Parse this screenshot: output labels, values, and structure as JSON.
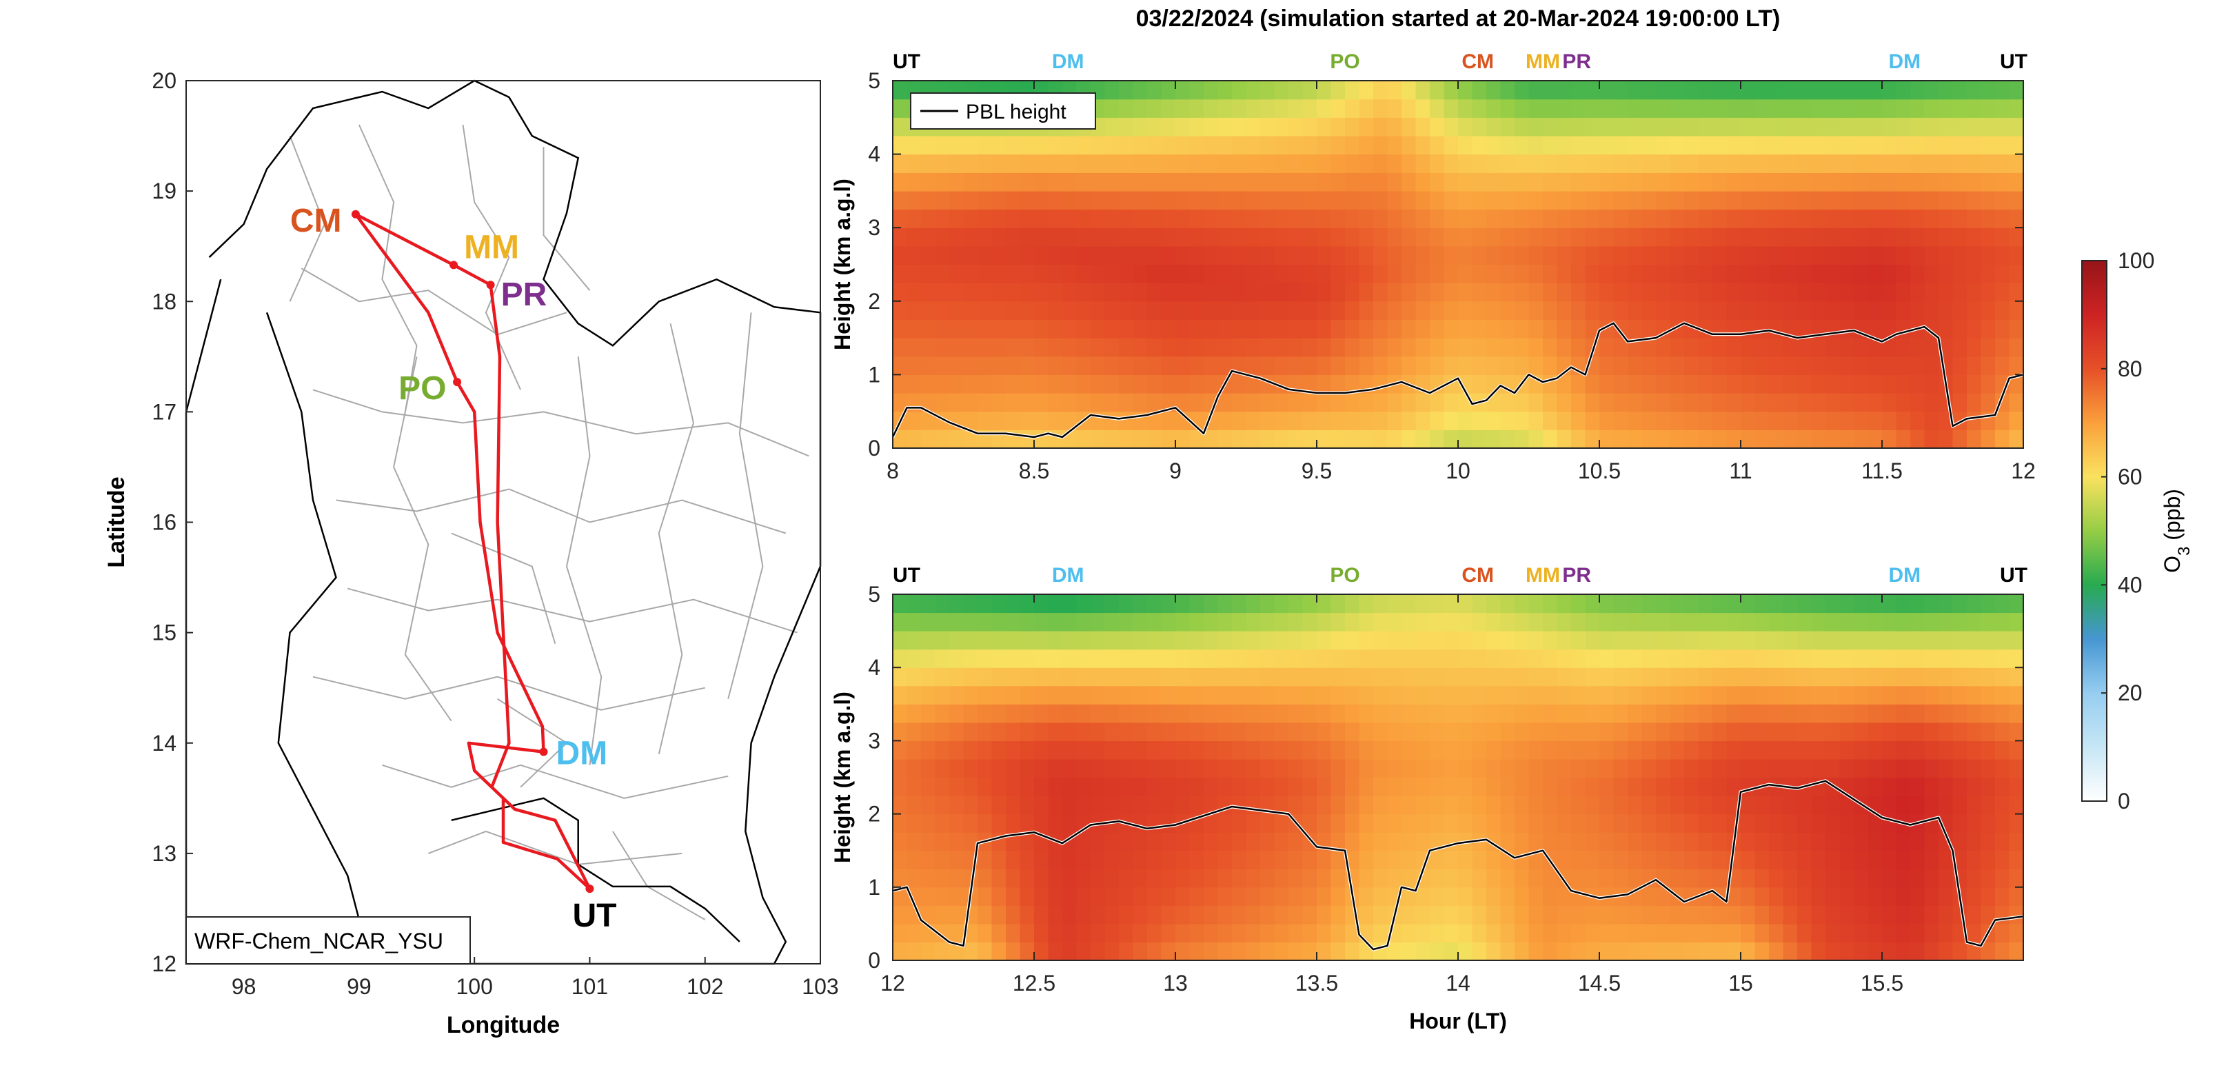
{
  "figure": {
    "title": "03/22/2024 (simulation started at 20-Mar-2024 19:00:00 LT)"
  },
  "colors": {
    "route": "#e8191f",
    "CM": "#d9531e",
    "MM": "#edb121",
    "PR": "#7e2f8e",
    "PO": "#77ac30",
    "DM": "#4dbeee",
    "UT": "#000000",
    "pbl": "#000000"
  },
  "map": {
    "xlabel": "Longitude",
    "ylabel": "Latitude",
    "xlim": [
      97.5,
      103
    ],
    "ylim": [
      12,
      20
    ],
    "xticks": [
      98,
      99,
      100,
      101,
      102,
      103
    ],
    "yticks": [
      12,
      13,
      14,
      15,
      16,
      17,
      18,
      19,
      20
    ],
    "model_label": "WRF-Chem_NCAR_YSU",
    "sites": [
      {
        "code": "CM",
        "lon": 98.97,
        "lat": 18.79
      },
      {
        "code": "MM",
        "lon": 99.82,
        "lat": 18.33
      },
      {
        "code": "PR",
        "lon": 100.14,
        "lat": 18.15
      },
      {
        "code": "PO",
        "lon": 99.85,
        "lat": 17.27
      },
      {
        "code": "DM",
        "lon": 100.6,
        "lat": 13.92
      },
      {
        "code": "UT",
        "lon": 101.0,
        "lat": 12.68
      }
    ],
    "route": [
      [
        101.0,
        12.68
      ],
      [
        100.72,
        12.95
      ],
      [
        100.25,
        13.1
      ],
      [
        100.25,
        13.5
      ],
      [
        100.0,
        13.75
      ],
      [
        99.95,
        14.0
      ],
      [
        100.6,
        13.92
      ],
      [
        100.59,
        14.15
      ],
      [
        100.2,
        15.0
      ],
      [
        100.05,
        16.0
      ],
      [
        100.0,
        17.0
      ],
      [
        99.85,
        17.27
      ],
      [
        99.6,
        17.9
      ],
      [
        98.97,
        18.79
      ],
      [
        99.82,
        18.33
      ],
      [
        100.14,
        18.15
      ],
      [
        100.22,
        17.5
      ],
      [
        100.2,
        16.0
      ],
      [
        100.25,
        15.0
      ],
      [
        100.3,
        14.0
      ],
      [
        100.15,
        13.6
      ],
      [
        100.35,
        13.4
      ],
      [
        100.7,
        13.3
      ],
      [
        101.0,
        12.68
      ]
    ]
  },
  "chart_data": [
    {
      "type": "heatmap",
      "title": "03/22/2024 (simulation started at 20-Mar-2024 19:00:00 LT)",
      "ylabel": "Height (km a.g.l)",
      "xlim": [
        8,
        12
      ],
      "ylim": [
        0,
        5
      ],
      "xticks": [
        8,
        8.5,
        9,
        9.5,
        10,
        10.5,
        11,
        11.5,
        12
      ],
      "xtick_labels": [
        "8",
        "8.5",
        "9",
        "9.5",
        "10",
        "10.5",
        "11",
        "11.5",
        "12"
      ],
      "yticks": [
        0,
        1,
        2,
        3,
        4,
        5
      ],
      "legend": {
        "label": "PBL height",
        "position": "top-left"
      },
      "site_markers": [
        {
          "code": "UT",
          "x": 8.0
        },
        {
          "code": "DM",
          "x": 8.62
        },
        {
          "code": "PO",
          "x": 9.6
        },
        {
          "code": "CM",
          "x": 10.07
        },
        {
          "code": "MM",
          "x": 10.3
        },
        {
          "code": "PR",
          "x": 10.42
        },
        {
          "code": "DM",
          "x": 11.58
        },
        {
          "code": "UT",
          "x": 11.96
        }
      ],
      "pbl_height": {
        "x": [
          8.0,
          8.05,
          8.1,
          8.2,
          8.3,
          8.4,
          8.5,
          8.55,
          8.6,
          8.65,
          8.7,
          8.8,
          8.9,
          9.0,
          9.1,
          9.15,
          9.2,
          9.3,
          9.4,
          9.5,
          9.6,
          9.7,
          9.8,
          9.9,
          10.0,
          10.05,
          10.1,
          10.15,
          10.2,
          10.25,
          10.3,
          10.35,
          10.4,
          10.45,
          10.5,
          10.55,
          10.6,
          10.7,
          10.8,
          10.9,
          11.0,
          11.1,
          11.2,
          11.3,
          11.4,
          11.5,
          11.55,
          11.6,
          11.65,
          11.7,
          11.75,
          11.8,
          11.9,
          11.95,
          12.0
        ],
        "y": [
          0.15,
          0.55,
          0.55,
          0.35,
          0.2,
          0.2,
          0.15,
          0.2,
          0.15,
          0.3,
          0.45,
          0.4,
          0.45,
          0.55,
          0.2,
          0.7,
          1.05,
          0.95,
          0.8,
          0.75,
          0.75,
          0.8,
          0.9,
          0.75,
          0.95,
          0.6,
          0.65,
          0.85,
          0.75,
          1.0,
          0.9,
          0.95,
          1.1,
          1.0,
          1.6,
          1.7,
          1.45,
          1.5,
          1.7,
          1.55,
          1.55,
          1.6,
          1.5,
          1.55,
          1.6,
          1.45,
          1.55,
          1.6,
          1.65,
          1.5,
          0.3,
          0.4,
          0.45,
          0.95,
          1.0
        ]
      },
      "o3_profile": {
        "x": [
          8.0,
          8.5,
          9.0,
          9.5,
          9.75,
          10.0,
          10.25,
          10.5,
          11.0,
          11.5,
          11.7,
          12.0
        ],
        "surface_ppb": [
          62,
          58,
          60,
          55,
          58,
          50,
          52,
          65,
          68,
          70,
          80,
          62
        ],
        "peak_ppb": [
          82,
          84,
          86,
          84,
          78,
          74,
          76,
          80,
          85,
          88,
          84,
          80
        ],
        "top_ppb": [
          38,
          36,
          44,
          52,
          62,
          48,
          40,
          40,
          38,
          38,
          40,
          42
        ],
        "peak_height_km": [
          2.6,
          2.7,
          2.3,
          2.1,
          2.4,
          2.5,
          2.6,
          2.4,
          2.4,
          2.3,
          2.5,
          2.6
        ]
      }
    },
    {
      "type": "heatmap",
      "ylabel": "Height (km a.g.l)",
      "xlabel": "Hour (LT)",
      "xlim": [
        12,
        16
      ],
      "ylim": [
        0,
        5
      ],
      "xticks": [
        12,
        12.5,
        13,
        13.5,
        14,
        14.5,
        15,
        15.5
      ],
      "xtick_labels": [
        "12",
        "12.5",
        "13",
        "13.5",
        "14",
        "14.5",
        "15",
        "15.5"
      ],
      "yticks": [
        0,
        1,
        2,
        3,
        4,
        5
      ],
      "site_markers": [
        {
          "code": "UT",
          "x": 12.0
        },
        {
          "code": "DM",
          "x": 12.62
        },
        {
          "code": "PO",
          "x": 13.6
        },
        {
          "code": "CM",
          "x": 14.07
        },
        {
          "code": "MM",
          "x": 14.3
        },
        {
          "code": "PR",
          "x": 14.42
        },
        {
          "code": "DM",
          "x": 15.58
        },
        {
          "code": "UT",
          "x": 15.96
        }
      ],
      "pbl_height": {
        "x": [
          12.0,
          12.05,
          12.1,
          12.2,
          12.25,
          12.3,
          12.4,
          12.5,
          12.6,
          12.7,
          12.8,
          12.9,
          13.0,
          13.2,
          13.4,
          13.5,
          13.6,
          13.65,
          13.7,
          13.75,
          13.8,
          13.85,
          13.9,
          14.0,
          14.1,
          14.2,
          14.3,
          14.4,
          14.5,
          14.6,
          14.7,
          14.8,
          14.9,
          14.95,
          15.0,
          15.1,
          15.2,
          15.3,
          15.4,
          15.5,
          15.6,
          15.7,
          15.75,
          15.8,
          15.85,
          15.9,
          16.0
        ],
        "y": [
          0.95,
          1.0,
          0.55,
          0.25,
          0.2,
          1.6,
          1.7,
          1.75,
          1.6,
          1.85,
          1.9,
          1.8,
          1.85,
          2.1,
          2.0,
          1.55,
          1.5,
          0.35,
          0.15,
          0.2,
          1.0,
          0.95,
          1.5,
          1.6,
          1.65,
          1.4,
          1.5,
          0.95,
          0.85,
          0.9,
          1.1,
          0.8,
          0.95,
          0.8,
          2.3,
          2.4,
          2.35,
          2.45,
          2.2,
          1.95,
          1.85,
          1.95,
          1.5,
          0.25,
          0.2,
          0.55,
          0.6
        ]
      },
      "o3_profile": {
        "x": [
          12.0,
          12.3,
          12.6,
          13.0,
          13.5,
          13.7,
          14.0,
          14.3,
          14.5,
          15.0,
          15.3,
          15.6,
          16.0
        ],
        "surface_ppb": [
          66,
          62,
          84,
          72,
          66,
          58,
          55,
          70,
          66,
          62,
          80,
          84,
          70
        ],
        "peak_ppb": [
          76,
          80,
          86,
          84,
          78,
          72,
          70,
          74,
          76,
          84,
          86,
          90,
          80
        ],
        "top_ppb": [
          40,
          38,
          36,
          40,
          48,
          54,
          56,
          50,
          46,
          42,
          40,
          38,
          42
        ],
        "peak_height_km": [
          2.5,
          2.6,
          2.4,
          2.3,
          2.4,
          2.6,
          2.6,
          2.5,
          2.3,
          2.4,
          2.2,
          2.2,
          2.4
        ]
      }
    }
  ],
  "colorbar": {
    "label_prefix": "O",
    "label_sub": "3",
    "label_suffix": " (ppb)",
    "min": 0,
    "max": 100,
    "ticks": [
      0,
      20,
      40,
      60,
      80,
      100
    ]
  }
}
